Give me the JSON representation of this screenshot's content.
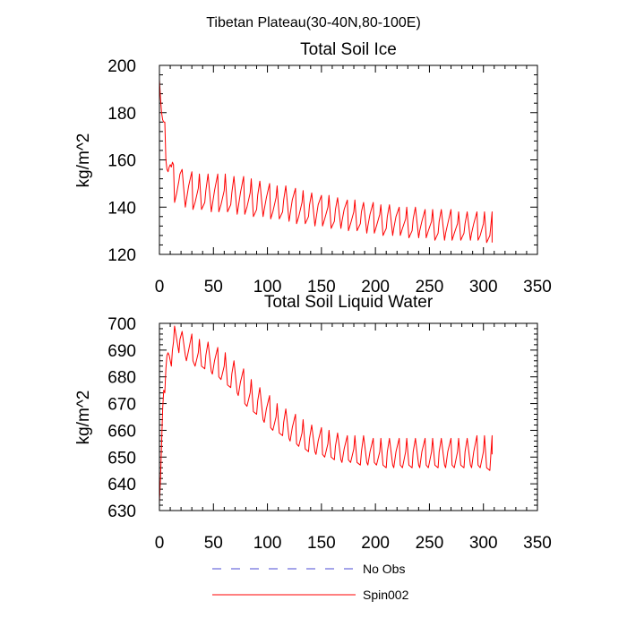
{
  "figure": {
    "title": "Tibetan Plateau(30-40N,80-100E)"
  },
  "legend": {
    "placement": "bottom-center",
    "entries": [
      {
        "label": "No Obs",
        "color": "#4b4bd6",
        "style": "dashed"
      },
      {
        "label": "Spin002",
        "color": "#ff0000",
        "style": "solid"
      }
    ]
  },
  "chart_data": [
    {
      "type": "line",
      "title": "Total Soil Ice",
      "xlabel": "",
      "ylabel": "kg/m^2",
      "xlim": [
        0,
        350
      ],
      "ylim": [
        120,
        200
      ],
      "xticks": [
        0,
        50,
        100,
        150,
        200,
        250,
        300,
        350
      ],
      "yticks": [
        120,
        140,
        160,
        180,
        200
      ],
      "grid": false,
      "series": [
        {
          "name": "Spin002",
          "color": "#ff0000",
          "x": [
            0,
            1,
            2,
            3,
            4,
            5,
            6,
            7,
            8,
            9,
            10,
            11,
            12,
            13,
            14,
            16,
            18,
            19,
            21,
            24,
            25,
            27,
            30,
            31,
            33,
            36,
            37,
            39,
            42,
            43,
            45,
            48,
            49,
            51,
            54,
            55,
            57,
            60,
            61,
            63,
            66,
            67,
            69,
            72,
            73,
            75,
            78,
            79,
            81,
            84,
            85,
            87,
            90,
            91,
            93,
            96,
            97,
            99,
            102,
            103,
            105,
            108,
            109,
            111,
            114,
            115,
            117,
            120,
            121,
            123,
            126,
            127,
            129,
            132,
            133,
            135,
            138,
            139,
            141,
            144,
            145,
            147,
            150,
            151,
            153,
            156,
            157,
            159,
            162,
            163,
            165,
            168,
            169,
            171,
            174,
            175,
            177,
            180,
            181,
            183,
            186,
            187,
            189,
            192,
            193,
            195,
            198,
            199,
            201,
            204,
            205,
            207,
            210,
            211,
            213,
            216,
            217,
            219,
            222,
            223,
            225,
            228,
            229,
            231,
            234,
            235,
            237,
            240,
            241,
            243,
            246,
            247,
            249,
            252,
            253,
            255,
            258,
            259,
            261,
            264,
            265,
            267,
            270,
            271,
            273,
            276,
            277,
            279,
            282,
            283,
            285,
            288,
            289,
            291,
            294,
            295,
            297,
            300,
            301,
            303,
            306,
            307,
            308,
            308
          ],
          "y": [
            194,
            186,
            180,
            177,
            176,
            176,
            160,
            156,
            155,
            157,
            158,
            157,
            159,
            158,
            142,
            146,
            151,
            154,
            156,
            140,
            143,
            149,
            155,
            139,
            142,
            148,
            154,
            139,
            142,
            147,
            154,
            138,
            141,
            147,
            154,
            138,
            141,
            147,
            154,
            138,
            141,
            146,
            153,
            137,
            140,
            146,
            153,
            137,
            140,
            146,
            152,
            136,
            139,
            145,
            151,
            136,
            139,
            144,
            150,
            135,
            138,
            144,
            149,
            135,
            138,
            143,
            149,
            134,
            137,
            143,
            148,
            133,
            136,
            142,
            147,
            133,
            136,
            141,
            146,
            132,
            135,
            141,
            145,
            132,
            135,
            140,
            145,
            131,
            134,
            139,
            144,
            131,
            134,
            139,
            143,
            130,
            133,
            138,
            143,
            130,
            133,
            138,
            142,
            129,
            132,
            137,
            142,
            129,
            132,
            137,
            141,
            128,
            131,
            136,
            141,
            128,
            131,
            136,
            140,
            128,
            131,
            135,
            140,
            127,
            130,
            135,
            140,
            127,
            130,
            134,
            139,
            127,
            130,
            134,
            139,
            126,
            129,
            134,
            139,
            126,
            129,
            133,
            139,
            126,
            129,
            133,
            138,
            126,
            129,
            133,
            138,
            126,
            129,
            133,
            138,
            126,
            128,
            133,
            138,
            125,
            128,
            133,
            138,
            125
          ]
        }
      ]
    },
    {
      "type": "line",
      "title": "Total Soil Liquid Water",
      "xlabel": "",
      "ylabel": "kg/m^2",
      "xlim": [
        0,
        350
      ],
      "ylim": [
        630,
        700
      ],
      "xticks": [
        0,
        50,
        100,
        150,
        200,
        250,
        300,
        350
      ],
      "yticks": [
        630,
        640,
        650,
        660,
        670,
        680,
        690,
        700
      ],
      "grid": false,
      "series": [
        {
          "name": "Spin002",
          "color": "#ff0000",
          "x": [
            0,
            1,
            2,
            3,
            4,
            5,
            6,
            7,
            8,
            9,
            10,
            11,
            12,
            13,
            14,
            16,
            18,
            19,
            21,
            24,
            25,
            27,
            30,
            31,
            33,
            36,
            37,
            39,
            42,
            43,
            45,
            48,
            49,
            51,
            54,
            55,
            57,
            60,
            61,
            63,
            66,
            67,
            69,
            72,
            73,
            75,
            78,
            79,
            81,
            84,
            85,
            87,
            90,
            91,
            93,
            96,
            97,
            99,
            102,
            103,
            105,
            108,
            109,
            111,
            114,
            115,
            117,
            120,
            121,
            123,
            126,
            127,
            129,
            132,
            133,
            135,
            138,
            139,
            141,
            144,
            145,
            147,
            150,
            151,
            153,
            156,
            157,
            159,
            162,
            163,
            165,
            168,
            169,
            171,
            174,
            175,
            177,
            180,
            181,
            183,
            186,
            187,
            189,
            192,
            193,
            195,
            198,
            199,
            201,
            204,
            205,
            207,
            210,
            211,
            213,
            216,
            217,
            219,
            222,
            223,
            225,
            228,
            229,
            231,
            234,
            235,
            237,
            240,
            241,
            243,
            246,
            247,
            249,
            252,
            253,
            255,
            258,
            259,
            261,
            264,
            265,
            267,
            270,
            271,
            273,
            276,
            277,
            279,
            282,
            283,
            285,
            288,
            289,
            291,
            294,
            295,
            297,
            300,
            301,
            303,
            306,
            307,
            308,
            308
          ],
          "y": [
            633,
            642,
            655,
            668,
            675,
            674,
            683,
            688,
            689,
            688,
            686,
            684,
            690,
            693,
            699,
            694,
            689,
            694,
            697,
            688,
            686,
            690,
            696,
            686,
            684,
            689,
            694,
            684,
            683,
            688,
            693,
            682,
            681,
            686,
            691,
            680,
            679,
            684,
            689,
            677,
            676,
            681,
            686,
            674,
            673,
            678,
            683,
            670,
            669,
            674,
            679,
            667,
            666,
            671,
            676,
            664,
            663,
            668,
            673,
            661,
            660,
            665,
            670,
            659,
            658,
            663,
            668,
            657,
            656,
            661,
            666,
            655,
            654,
            659,
            664,
            653,
            652,
            657,
            662,
            652,
            651,
            656,
            661,
            651,
            650,
            655,
            660,
            650,
            649,
            654,
            659,
            649,
            648,
            653,
            658,
            649,
            648,
            653,
            658,
            648,
            647,
            652,
            658,
            648,
            647,
            652,
            657,
            648,
            647,
            652,
            657,
            647,
            646,
            652,
            657,
            647,
            646,
            652,
            657,
            647,
            646,
            652,
            657,
            647,
            646,
            652,
            657,
            647,
            646,
            652,
            657,
            647,
            646,
            652,
            657,
            647,
            646,
            652,
            657,
            647,
            646,
            652,
            657,
            647,
            646,
            652,
            657,
            647,
            646,
            652,
            657,
            647,
            646,
            652,
            658,
            647,
            646,
            652,
            658,
            646,
            645,
            652,
            658,
            651
          ]
        }
      ]
    }
  ]
}
